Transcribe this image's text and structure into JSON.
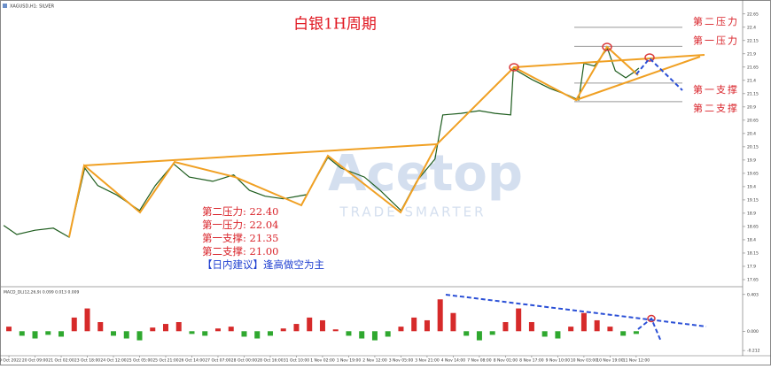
{
  "header": {
    "symbol": "XAGUSD,H1: SILVER"
  },
  "chart_data": [
    {
      "type": "line",
      "title": "白银1H周期",
      "color": "#1d5c1d",
      "x": [
        -0.2,
        0.3,
        1.0,
        1.7,
        2.3,
        2.9,
        3.4,
        4.1,
        5.0,
        5.6,
        6.3,
        6.9,
        7.8,
        8.6,
        9.2,
        9.8,
        10.5,
        11.4,
        12.2,
        12.7,
        13.6,
        14.2,
        15.0,
        15.6,
        16.3,
        16.6,
        17.3,
        18.0,
        18.6,
        19.2,
        19.3,
        20.0,
        20.7,
        21.4,
        21.8,
        22.0,
        22.4,
        22.9,
        23.2,
        23.6,
        23.9,
        24.1
      ],
      "values": [
        18.67,
        18.5,
        18.58,
        18.62,
        18.45,
        19.75,
        19.42,
        19.25,
        18.95,
        19.42,
        19.83,
        19.58,
        19.5,
        19.62,
        19.33,
        19.22,
        19.17,
        19.25,
        19.95,
        19.75,
        19.58,
        19.33,
        18.95,
        19.5,
        19.92,
        20.75,
        20.78,
        20.83,
        20.78,
        20.75,
        21.62,
        21.42,
        21.25,
        21.12,
        21.03,
        21.72,
        21.67,
        22.0,
        21.58,
        21.45,
        21.55,
        21.63
      ],
      "xlim": [
        -0.34,
        27.97
      ],
      "ylim": [
        17.55,
        22.83
      ],
      "yticks": [
        17.65,
        17.9,
        18.15,
        18.4,
        18.65,
        18.9,
        19.15,
        19.4,
        19.65,
        19.9,
        20.15,
        20.4,
        20.65,
        20.9,
        21.15,
        21.4,
        21.65,
        21.9,
        22.15,
        22.4,
        22.65
      ],
      "x_labels": [
        "19 Oct 2022",
        "20 Oct 09:00",
        "21 Oct 02:00",
        "23 Oct 18:00",
        "24 Oct 12:00",
        "25 Oct 05:00",
        "25 Oct 21:00",
        "26 Oct 14:00",
        "27 Oct 07:00",
        "28 Oct 00:00",
        "28 Oct 16:00",
        "31 Oct 10:00",
        "1 Nov 02:00",
        "1 Nov 19:00",
        "2 Nov 12:00",
        "3 Nov 05:00",
        "3 Nov 21:00",
        "4 Nov 14:00",
        "7 Nov 08:00",
        "8 Nov 01:00",
        "8 Nov 17:00",
        "9 Nov 10:00",
        "10 Nov 03:00",
        "10 Nov 19:00",
        "11 Nov 12:00"
      ],
      "levels": {
        "names": [
          "第二压力",
          "第一压力",
          "第一支撑",
          "第二支撑"
        ],
        "values": [
          22.4,
          22.04,
          21.35,
          21.0
        ],
        "color": "#999999"
      },
      "notes": [
        "第二压力: 22.40",
        "第一压力: 22.04",
        "第一支撑: 21.35",
        "第二支撑: 21.00"
      ],
      "advice": "【日内建议】逢高做空为主",
      "watermark": [
        "Acetop",
        "TRADE SMARTER"
      ]
    },
    {
      "type": "bar",
      "title": "MACD_DL(12,26,9) 0.099 0.013 0.009",
      "x": [
        0,
        0.5,
        1,
        1.5,
        2,
        2.5,
        3,
        3.5,
        4,
        4.5,
        5,
        5.5,
        6,
        6.5,
        7,
        7.5,
        8,
        8.5,
        9,
        9.5,
        10,
        10.5,
        11,
        11.5,
        12,
        12.5,
        13,
        13.5,
        14,
        14.5,
        15,
        15.5,
        16,
        16.5,
        17,
        17.5,
        18,
        18.5,
        19,
        19.5,
        20,
        20.5,
        21,
        21.5,
        22,
        22.5,
        23,
        23.5,
        24
      ],
      "values": [
        0.05,
        -0.05,
        -0.08,
        -0.04,
        -0.06,
        0.15,
        0.25,
        0.1,
        -0.05,
        -0.08,
        -0.1,
        0.04,
        0.08,
        0.1,
        -0.03,
        -0.05,
        0.03,
        0.05,
        -0.06,
        -0.08,
        -0.05,
        0.03,
        0.08,
        0.15,
        0.12,
        0.02,
        -0.05,
        -0.08,
        -0.1,
        -0.06,
        0.05,
        0.15,
        0.12,
        0.35,
        0.2,
        -0.05,
        -0.1,
        -0.04,
        0.1,
        0.25,
        0.1,
        -0.06,
        -0.08,
        0.05,
        0.2,
        0.12,
        0.05,
        -0.05,
        -0.03
      ],
      "colors": {
        "up": "#d62a2a",
        "down": "#2fa82f"
      },
      "xlim": [
        -0.34,
        27.97
      ],
      "ylim": [
        -0.25,
        0.45
      ],
      "yticks": [
        0.403,
        {
          "value": 0,
          "label": "0.000"
        },
        -0.212
      ]
    }
  ]
}
